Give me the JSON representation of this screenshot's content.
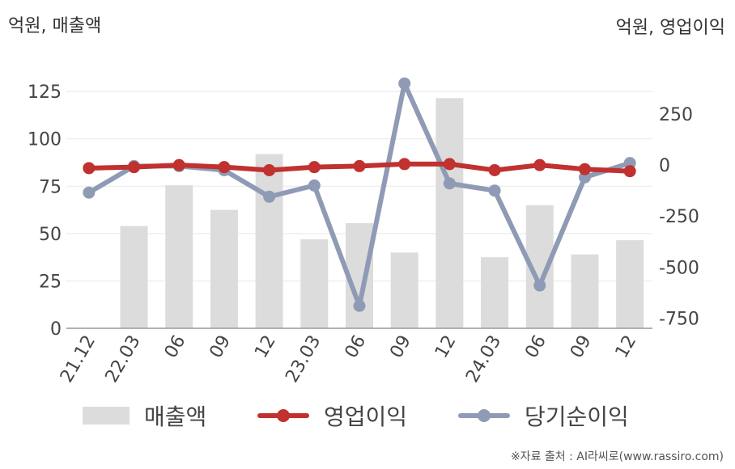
{
  "units": {
    "left": "억원, 매출액",
    "right": "억원, 영업이익"
  },
  "source": "※자료 출처 : AI라씨로(www.rassiro.com)",
  "legend": {
    "revenue": "매출액",
    "operating_profit": "영업이익",
    "net_profit": "당기순이익"
  },
  "colors": {
    "revenue": "#dcdcdc",
    "operating_profit": "#c0312f",
    "net_profit": "#8f9bb5",
    "grid": "#e8e8e8",
    "axis": "#999999"
  },
  "chart_data": {
    "type": "bar+line",
    "categories": [
      "21.12",
      "22.03",
      "06",
      "09",
      "12",
      "23.03",
      "06",
      "09",
      "12",
      "24.03",
      "06",
      "09",
      "12"
    ],
    "left_axis": {
      "ylim": [
        0,
        140
      ],
      "ticks": [
        0,
        25,
        50,
        75,
        100,
        125
      ]
    },
    "right_axis": {
      "ylim": [
        -800,
        500
      ],
      "ticks": [
        -750,
        -500,
        -250,
        0,
        250
      ]
    },
    "series": [
      {
        "name": "매출액",
        "type": "bar",
        "axis": "left",
        "values": [
          null,
          54,
          75.5,
          62.5,
          92,
          47,
          55.5,
          40,
          121.5,
          37.5,
          65,
          39,
          46.5
        ]
      },
      {
        "name": "영업이익",
        "type": "line",
        "axis": "right",
        "values": [
          -15,
          -10,
          0,
          -10,
          -25,
          -10,
          -5,
          5,
          5,
          -25,
          0,
          -20,
          -30
        ]
      },
      {
        "name": "당기순이익",
        "type": "line",
        "axis": "right",
        "values": [
          -135,
          -5,
          -5,
          -25,
          -155,
          -100,
          -690,
          400,
          -90,
          -125,
          -590,
          -60,
          10
        ]
      }
    ]
  }
}
